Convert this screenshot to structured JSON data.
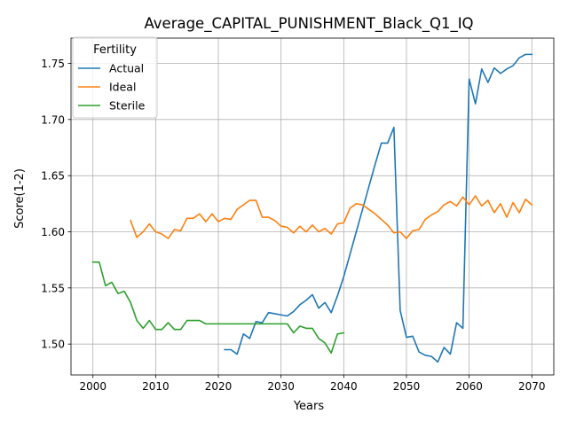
{
  "chart_data": {
    "type": "line",
    "title": "Average_CAPITAL_PUNISHMENT_Black_Q1_IQ",
    "xlabel": "Years",
    "ylabel": "Score(1-2)",
    "xlim": [
      1996.5,
      2073.5
    ],
    "ylim": [
      1.4725,
      1.7725
    ],
    "xticks": [
      2000,
      2010,
      2020,
      2030,
      2040,
      2050,
      2060,
      2070
    ],
    "yticks": [
      1.5,
      1.55,
      1.6,
      1.65,
      1.7,
      1.75
    ],
    "ytick_labels": [
      "1.50",
      "1.55",
      "1.60",
      "1.65",
      "1.70",
      "1.75"
    ],
    "grid": true,
    "legend": {
      "title": "Fertility",
      "placement": "top-left"
    },
    "series": [
      {
        "name": "Actual",
        "color": "#1f77b4",
        "x": [
          2021,
          2022,
          2023,
          2024,
          2025,
          2026,
          2027,
          2028,
          2029,
          2030,
          2031,
          2032,
          2033,
          2034,
          2035,
          2036,
          2037,
          2038,
          2039,
          2040,
          2041,
          2042,
          2043,
          2044,
          2045,
          2046,
          2047,
          2048,
          2049,
          2050,
          2051,
          2052,
          2053,
          2054,
          2055,
          2056,
          2057,
          2058,
          2059,
          2060,
          2061,
          2062,
          2063,
          2064,
          2065,
          2066,
          2067,
          2068,
          2069,
          2070
        ],
        "values": [
          1.495,
          1.495,
          1.491,
          1.509,
          1.505,
          1.52,
          1.519,
          1.528,
          1.527,
          1.526,
          1.525,
          1.529,
          1.535,
          1.539,
          1.544,
          1.532,
          1.537,
          1.528,
          1.543,
          1.56,
          1.58,
          1.6,
          1.62,
          1.64,
          1.66,
          1.679,
          1.679,
          1.693,
          1.53,
          1.506,
          1.507,
          1.493,
          1.49,
          1.489,
          1.484,
          1.497,
          1.491,
          1.519,
          1.514,
          1.736,
          1.714,
          1.745,
          1.733,
          1.746,
          1.741,
          1.745,
          1.748,
          1.755,
          1.758,
          1.758
        ]
      },
      {
        "name": "Ideal",
        "color": "#ff7f0e",
        "x": [
          2006,
          2007,
          2008,
          2009,
          2010,
          2011,
          2012,
          2013,
          2014,
          2015,
          2016,
          2017,
          2018,
          2019,
          2020,
          2021,
          2022,
          2023,
          2024,
          2025,
          2026,
          2027,
          2028,
          2029,
          2030,
          2031,
          2032,
          2033,
          2034,
          2035,
          2036,
          2037,
          2038,
          2039,
          2040,
          2041,
          2042,
          2043,
          2044,
          2045,
          2046,
          2047,
          2048,
          2049,
          2050,
          2051,
          2052,
          2053,
          2054,
          2055,
          2056,
          2057,
          2058,
          2059,
          2060,
          2061,
          2062,
          2063,
          2064,
          2065,
          2066,
          2067,
          2068,
          2069,
          2070
        ],
        "values": [
          1.61,
          1.595,
          1.6,
          1.607,
          1.6,
          1.598,
          1.594,
          1.602,
          1.601,
          1.612,
          1.612,
          1.616,
          1.609,
          1.616,
          1.609,
          1.612,
          1.611,
          1.62,
          1.624,
          1.628,
          1.628,
          1.613,
          1.613,
          1.61,
          1.605,
          1.604,
          1.599,
          1.605,
          1.6,
          1.606,
          1.6,
          1.603,
          1.598,
          1.607,
          1.608,
          1.621,
          1.625,
          1.624,
          1.62,
          1.616,
          1.611,
          1.606,
          1.599,
          1.6,
          1.594,
          1.601,
          1.602,
          1.611,
          1.615,
          1.618,
          1.624,
          1.627,
          1.623,
          1.631,
          1.624,
          1.632,
          1.623,
          1.628,
          1.617,
          1.625,
          1.613,
          1.626,
          1.617,
          1.629,
          1.624
        ]
      },
      {
        "name": "Sterile",
        "color": "#2ca02c",
        "x": [
          2000,
          2001,
          2002,
          2003,
          2004,
          2005,
          2006,
          2007,
          2008,
          2009,
          2010,
          2011,
          2012,
          2013,
          2014,
          2015,
          2016,
          2017,
          2018,
          2019,
          2020,
          2021,
          2022,
          2023,
          2024,
          2025,
          2026,
          2027,
          2028,
          2029,
          2030,
          2031,
          2032,
          2033,
          2034,
          2035,
          2036,
          2037,
          2038,
          2039,
          2040
        ],
        "values": [
          1.573,
          1.573,
          1.552,
          1.555,
          1.545,
          1.547,
          1.537,
          1.521,
          1.514,
          1.521,
          1.513,
          1.513,
          1.519,
          1.513,
          1.513,
          1.521,
          1.521,
          1.521,
          1.518,
          1.518,
          1.518,
          1.518,
          1.518,
          1.518,
          1.518,
          1.518,
          1.518,
          1.518,
          1.518,
          1.518,
          1.518,
          1.518,
          1.51,
          1.516,
          1.514,
          1.514,
          1.505,
          1.501,
          1.492,
          1.509,
          1.51
        ]
      }
    ]
  }
}
